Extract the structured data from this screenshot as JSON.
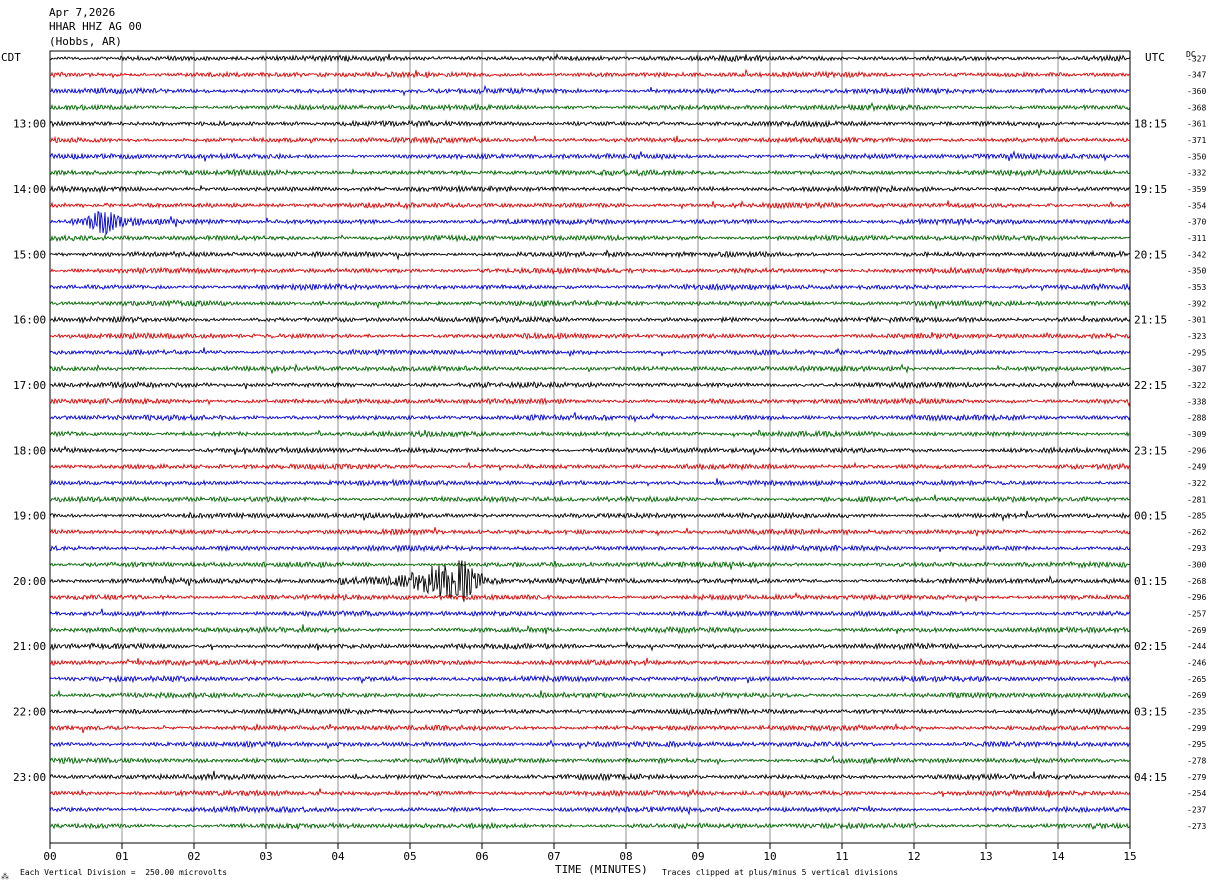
{
  "header": {
    "date": "Apr 7,2026",
    "station": "HHAR HHZ AG 00",
    "location": "(Hobbs, AR)"
  },
  "left_tz": "CDT",
  "right_tz": "UTC",
  "dc_label": "DC",
  "footer": {
    "scale_note": "Each Vertical Division =  250.00 microvolts",
    "clip_note": "Traces clipped at plus/minus 5 vertical divisions",
    "marker": "⁂"
  },
  "chart_data": {
    "type": "line",
    "xlabel": "TIME (MINUTES)",
    "x_ticks": [
      "00",
      "01",
      "02",
      "03",
      "04",
      "05",
      "06",
      "07",
      "08",
      "09",
      "10",
      "11",
      "12",
      "13",
      "14",
      "15"
    ],
    "xlim": [
      0,
      15
    ],
    "trace_colors": [
      "#000000",
      "#dd0000",
      "#0000dd",
      "#006600"
    ],
    "left_hour_labels": [
      "13:00",
      "14:00",
      "15:00",
      "16:00",
      "17:00",
      "18:00",
      "19:00",
      "20:00",
      "21:00",
      "22:00",
      "23:00"
    ],
    "right_hour_labels": [
      "18:15",
      "19:15",
      "20:15",
      "21:15",
      "22:15",
      "23:15",
      "00:15",
      "01:15",
      "02:15",
      "03:15",
      "04:15"
    ],
    "dc_offsets": [
      -327,
      -347,
      -360,
      -368,
      -361,
      -371,
      -350,
      -332,
      -359,
      -354,
      -370,
      -311,
      -342,
      -350,
      -353,
      -392,
      -301,
      -323,
      -295,
      -307,
      -322,
      -338,
      -288,
      -309,
      -296,
      -249,
      -322,
      -281,
      -285,
      -262,
      -293,
      -300,
      -268,
      -296,
      -257,
      -269,
      -244,
      -246,
      -265,
      -269,
      -235,
      -299,
      -295,
      -278,
      -279,
      -254,
      -237,
      -273
    ],
    "events": [
      {
        "trace": 32,
        "start_min": 4.0,
        "peak_min": 5.7,
        "end_min": 6.3,
        "amplitude": "large"
      },
      {
        "trace": 10,
        "start_min": 0.3,
        "peak_min": 0.7,
        "end_min": 1.3,
        "amplitude": "medium"
      }
    ]
  }
}
